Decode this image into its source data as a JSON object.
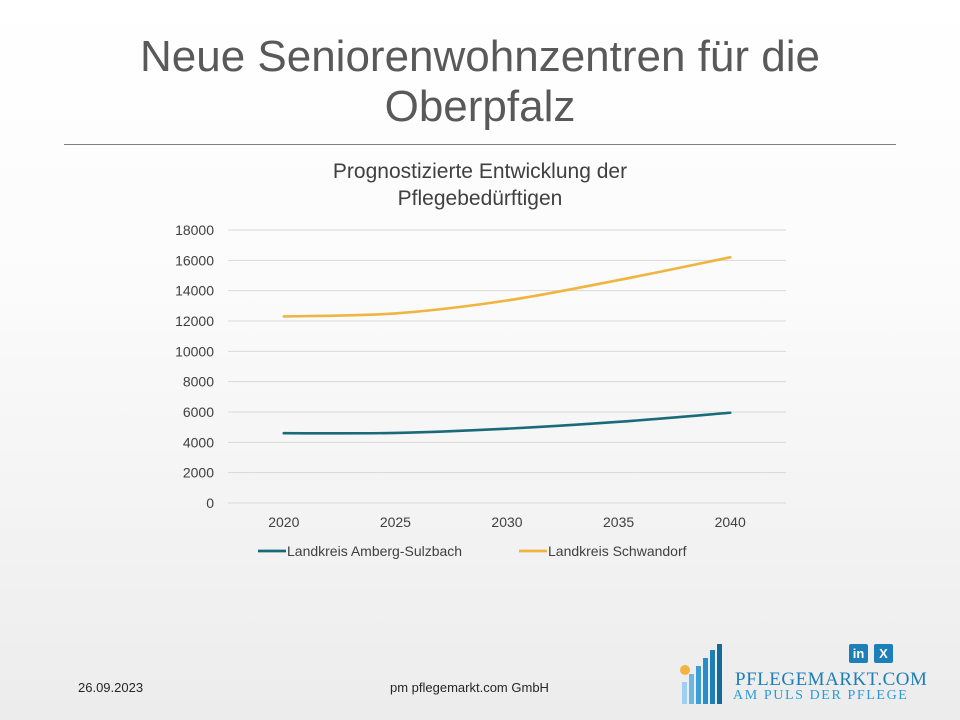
{
  "slide": {
    "title_line1": "Neue Seniorenwohnzentren für die",
    "title_line2": "Oberpfalz"
  },
  "chart_data": {
    "type": "line",
    "title_line1": "Prognostizierte Entwicklung der",
    "title_line2": "Pflegebedürftigen",
    "categories": [
      "2020",
      "2025",
      "2030",
      "2035",
      "2040"
    ],
    "series": [
      {
        "name": "Landkreis Amberg-Sulzbach",
        "color": "#1a6b7a",
        "values": [
          4600,
          4620,
          4900,
          5350,
          5950
        ]
      },
      {
        "name": "Landkreis Schwandorf",
        "color": "#f0b440",
        "values": [
          12300,
          12500,
          13350,
          14700,
          16200
        ]
      }
    ],
    "yticks": [
      0,
      2000,
      4000,
      6000,
      8000,
      10000,
      12000,
      14000,
      16000,
      18000
    ],
    "ylim": [
      0,
      18000
    ],
    "grid": true,
    "legend": "bottom",
    "xlabel": "",
    "ylabel": ""
  },
  "footer": {
    "date": "26.09.2023",
    "company": "pm pflegemarkt.com GmbH"
  },
  "logo": {
    "name": "PFLEGEMARKT.COM",
    "tagline": "AM PULS DER PFLEGE",
    "linkedin_label": "in",
    "xing_label": "X",
    "accent_color": "#1c7fb8"
  }
}
